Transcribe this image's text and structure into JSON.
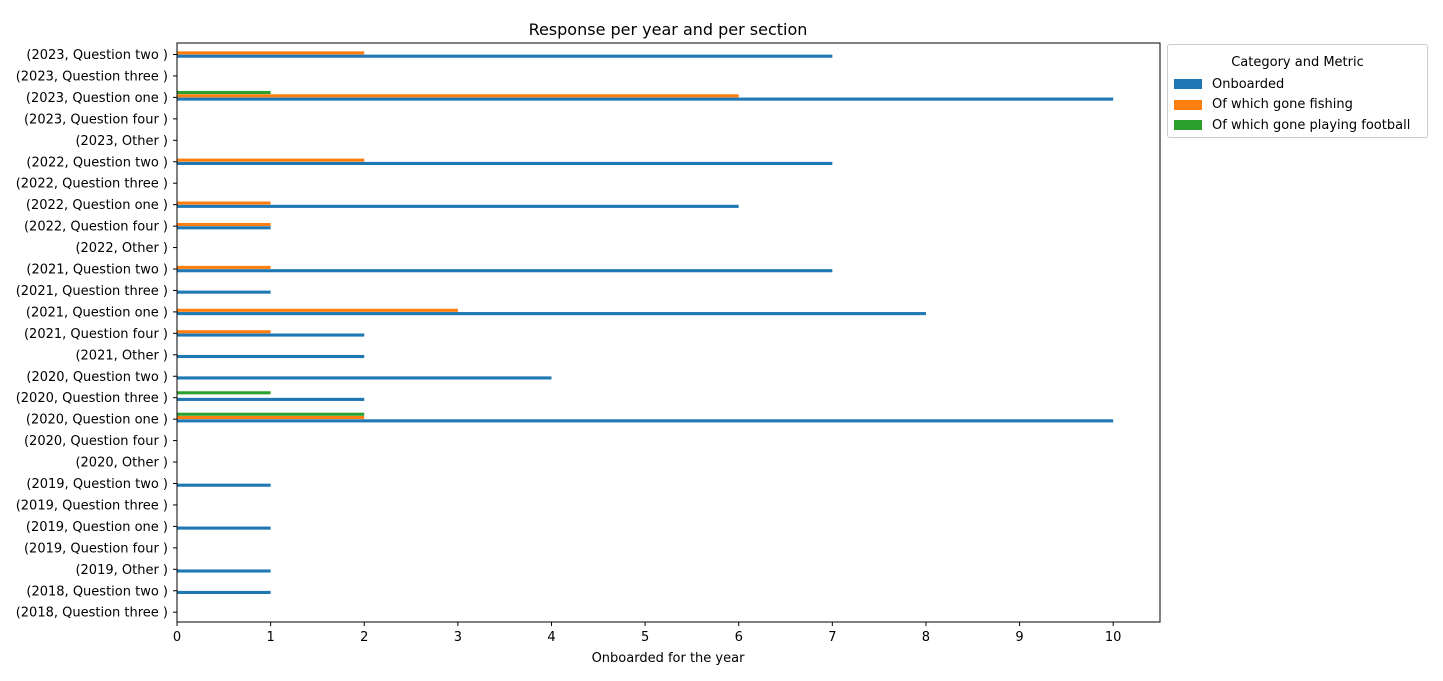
{
  "chart_data": {
    "type": "bar",
    "orientation": "horizontal",
    "title": "Response per year and per section",
    "xlabel": "Onboarded for the year",
    "ylabel": "",
    "xlim": [
      0,
      10.5
    ],
    "xticks": [
      0,
      1,
      2,
      3,
      4,
      5,
      6,
      7,
      8,
      9,
      10
    ],
    "legend_title": "Category and Metric",
    "legend_placement": "outside upper right",
    "grid": false,
    "categories": [
      "(2023, Question two )",
      "(2023, Question three )",
      "(2023, Question one )",
      "(2023, Question four )",
      "(2023, Other )",
      "(2022, Question two )",
      "(2022, Question three )",
      "(2022, Question one )",
      "(2022, Question four )",
      "(2022, Other )",
      "(2021, Question two )",
      "(2021, Question three )",
      "(2021, Question one )",
      "(2021, Question four )",
      "(2021, Other )",
      "(2020, Question two )",
      "(2020, Question three )",
      "(2020, Question one )",
      "(2020, Question four )",
      "(2020, Other )",
      "(2019, Question two )",
      "(2019, Question three )",
      "(2019, Question one )",
      "(2019, Question four )",
      "(2019, Other )",
      "(2018, Question two )",
      "(2018, Question three )"
    ],
    "series": [
      {
        "name": "Onboarded",
        "color": "#1f77b4",
        "values": [
          7,
          0,
          10,
          0,
          0,
          7,
          0,
          6,
          1,
          0,
          7,
          1,
          8,
          2,
          2,
          4,
          2,
          10,
          0,
          0,
          1,
          0,
          1,
          0,
          1,
          1,
          0
        ]
      },
      {
        "name": "Of which gone fishing",
        "color": "#ff7f0e",
        "values": [
          2,
          0,
          6,
          0,
          0,
          2,
          0,
          1,
          1,
          0,
          1,
          0,
          3,
          1,
          0,
          0,
          0,
          2,
          0,
          0,
          0,
          0,
          0,
          0,
          0,
          0,
          0
        ]
      },
      {
        "name": "Of which gone playing football",
        "color": "#2ca02c",
        "values": [
          0,
          0,
          1,
          0,
          0,
          0,
          0,
          0,
          0,
          0,
          0,
          0,
          0,
          0,
          0,
          0,
          1,
          2,
          0,
          0,
          0,
          0,
          0,
          0,
          0,
          0,
          0
        ]
      }
    ]
  }
}
